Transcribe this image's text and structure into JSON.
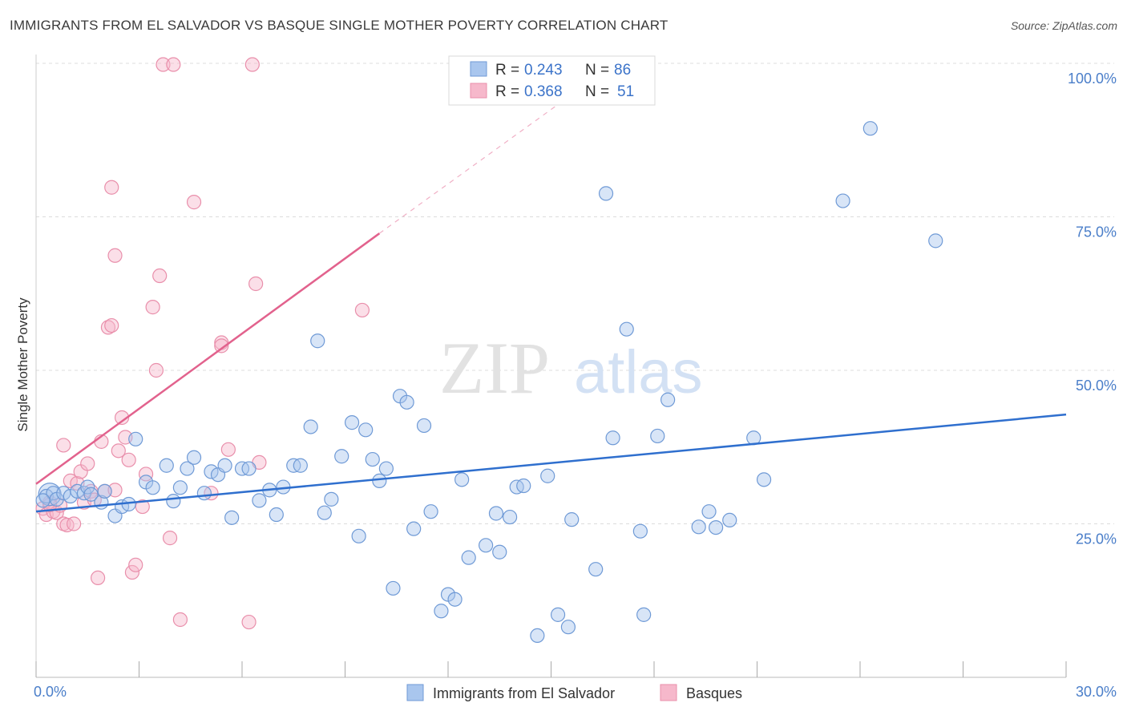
{
  "header": {
    "title": "IMMIGRANTS FROM EL SALVADOR VS BASQUE SINGLE MOTHER POVERTY CORRELATION CHART",
    "source": "Source: ZipAtlas.com"
  },
  "watermark": {
    "zip": "ZIP",
    "atlas": "atlas"
  },
  "colors": {
    "blue_fill": "#a9c6ee",
    "blue_stroke": "#6f9ad6",
    "blue_line": "#2f6fce",
    "pink_fill": "#f6b8cb",
    "pink_stroke": "#e98fab",
    "pink_line": "#e2628d",
    "tick_text": "#4a7ec9",
    "grid": "#dcdcdc"
  },
  "legend": {
    "entries": [
      {
        "r_label": "R =",
        "r_value": "0.243",
        "n_label": "N =",
        "n_value": "86"
      },
      {
        "r_label": "R =",
        "r_value": "0.368",
        "n_label": "N =",
        "n_value": "51"
      }
    ]
  },
  "chart_data": {
    "type": "scatter",
    "title": "IMMIGRANTS FROM EL SALVADOR VS BASQUE SINGLE MOTHER POVERTY CORRELATION CHART",
    "xlabel": "",
    "ylabel": "Single Mother Poverty",
    "xlim": [
      0,
      30
    ],
    "ylim": [
      0,
      100
    ],
    "x_tick_labels": [
      "0.0%",
      "30.0%"
    ],
    "y_ticks": [
      25,
      50,
      75,
      100
    ],
    "y_tick_labels": [
      "25.0%",
      "50.0%",
      "75.0%",
      "100.0%"
    ],
    "grid": true,
    "legend_position": "top-center",
    "series": [
      {
        "name": "Immigrants from El Salvador",
        "R": 0.243,
        "N": 86,
        "trend": {
          "x": [
            0,
            30
          ],
          "y": [
            27.0,
            42.8
          ]
        },
        "points": [
          [
            0.3,
            29.5
          ],
          [
            0.5,
            30.0
          ],
          [
            0.6,
            29.0
          ],
          [
            0.8,
            30.0
          ],
          [
            1.0,
            29.5
          ],
          [
            1.2,
            30.3
          ],
          [
            1.4,
            30.0
          ],
          [
            1.5,
            31.0
          ],
          [
            1.6,
            29.8
          ],
          [
            1.9,
            28.5
          ],
          [
            2.0,
            30.3
          ],
          [
            2.3,
            26.3
          ],
          [
            2.5,
            27.8
          ],
          [
            2.7,
            28.2
          ],
          [
            2.9,
            38.8
          ],
          [
            3.2,
            31.8
          ],
          [
            3.4,
            30.9
          ],
          [
            3.8,
            34.5
          ],
          [
            4.0,
            28.7
          ],
          [
            4.2,
            30.9
          ],
          [
            4.4,
            34.0
          ],
          [
            4.6,
            35.8
          ],
          [
            4.9,
            30.0
          ],
          [
            5.1,
            33.5
          ],
          [
            5.3,
            33.0
          ],
          [
            5.5,
            34.5
          ],
          [
            5.7,
            26.0
          ],
          [
            6.0,
            34.0
          ],
          [
            6.2,
            34.0
          ],
          [
            6.5,
            28.8
          ],
          [
            6.8,
            30.5
          ],
          [
            7.0,
            26.5
          ],
          [
            7.2,
            31.0
          ],
          [
            7.5,
            34.5
          ],
          [
            7.7,
            34.5
          ],
          [
            8.0,
            40.8
          ],
          [
            8.2,
            54.8
          ],
          [
            8.4,
            26.8
          ],
          [
            8.6,
            29.0
          ],
          [
            8.9,
            36.0
          ],
          [
            9.2,
            41.5
          ],
          [
            9.4,
            23.0
          ],
          [
            9.6,
            40.3
          ],
          [
            9.8,
            35.5
          ],
          [
            10.0,
            32.0
          ],
          [
            10.2,
            34.0
          ],
          [
            10.4,
            14.5
          ],
          [
            10.6,
            45.8
          ],
          [
            10.8,
            44.8
          ],
          [
            11.0,
            24.2
          ],
          [
            11.3,
            41.0
          ],
          [
            11.5,
            27.0
          ],
          [
            11.8,
            10.8
          ],
          [
            12.0,
            13.5
          ],
          [
            12.2,
            12.7
          ],
          [
            12.4,
            32.2
          ],
          [
            12.6,
            19.5
          ],
          [
            13.1,
            21.5
          ],
          [
            13.4,
            26.7
          ],
          [
            13.5,
            20.4
          ],
          [
            13.8,
            26.1
          ],
          [
            14.0,
            31.0
          ],
          [
            14.2,
            31.2
          ],
          [
            14.6,
            6.8
          ],
          [
            14.9,
            32.8
          ],
          [
            15.2,
            10.2
          ],
          [
            15.5,
            8.2
          ],
          [
            15.6,
            25.7
          ],
          [
            16.3,
            17.6
          ],
          [
            16.6,
            78.8
          ],
          [
            16.8,
            39.0
          ],
          [
            17.2,
            56.7
          ],
          [
            17.6,
            23.8
          ],
          [
            17.7,
            10.2
          ],
          [
            18.1,
            39.3
          ],
          [
            18.4,
            45.2
          ],
          [
            19.3,
            24.5
          ],
          [
            19.6,
            27.0
          ],
          [
            19.8,
            24.4
          ],
          [
            20.2,
            25.6
          ],
          [
            20.9,
            39.0
          ],
          [
            21.2,
            32.2
          ],
          [
            23.5,
            77.6
          ],
          [
            24.3,
            89.4
          ],
          [
            26.2,
            71.1
          ],
          [
            0.2,
            28.8
          ]
        ]
      },
      {
        "name": "Basques",
        "R": 0.368,
        "N": 51,
        "trend": {
          "x": [
            0,
            10
          ],
          "y": [
            31.5,
            72.3
          ]
        },
        "trend_dashed": {
          "x": [
            10,
            15.5
          ],
          "y": [
            72.3,
            94.5
          ]
        },
        "points": [
          [
            0.2,
            27.5
          ],
          [
            0.3,
            26.5
          ],
          [
            0.4,
            28.5
          ],
          [
            0.5,
            27.0
          ],
          [
            0.6,
            26.8
          ],
          [
            0.7,
            28.0
          ],
          [
            0.8,
            25.0
          ],
          [
            0.9,
            24.8
          ],
          [
            0.8,
            37.8
          ],
          [
            1.0,
            32.0
          ],
          [
            1.1,
            25.0
          ],
          [
            1.2,
            31.6
          ],
          [
            1.3,
            33.5
          ],
          [
            1.4,
            28.5
          ],
          [
            1.5,
            34.8
          ],
          [
            1.6,
            30.3
          ],
          [
            1.7,
            28.9
          ],
          [
            1.8,
            16.2
          ],
          [
            2.0,
            30.3
          ],
          [
            2.1,
            57.0
          ],
          [
            2.2,
            57.3
          ],
          [
            2.3,
            68.7
          ],
          [
            2.4,
            36.9
          ],
          [
            2.5,
            42.3
          ],
          [
            2.6,
            39.1
          ],
          [
            2.7,
            35.4
          ],
          [
            2.8,
            17.1
          ],
          [
            2.9,
            18.3
          ],
          [
            2.3,
            30.5
          ],
          [
            3.1,
            27.8
          ],
          [
            3.2,
            33.1
          ],
          [
            3.4,
            60.3
          ],
          [
            3.5,
            50.0
          ],
          [
            3.6,
            65.4
          ],
          [
            3.9,
            22.7
          ],
          [
            4.2,
            9.4
          ],
          [
            2.2,
            79.8
          ],
          [
            4.6,
            77.4
          ],
          [
            5.4,
            54.5
          ],
          [
            5.1,
            30.0
          ],
          [
            5.6,
            37.1
          ],
          [
            5.4,
            54.0
          ],
          [
            6.2,
            9.0
          ],
          [
            6.4,
            64.1
          ],
          [
            6.5,
            35.0
          ],
          [
            9.5,
            59.8
          ],
          [
            3.7,
            99.8
          ],
          [
            4.0,
            99.8
          ],
          [
            6.3,
            99.8
          ],
          [
            1.9,
            38.4
          ],
          [
            0.4,
            28.1
          ]
        ]
      }
    ]
  },
  "bottom_legend": [
    "Immigrants from El Salvador",
    "Basques"
  ]
}
